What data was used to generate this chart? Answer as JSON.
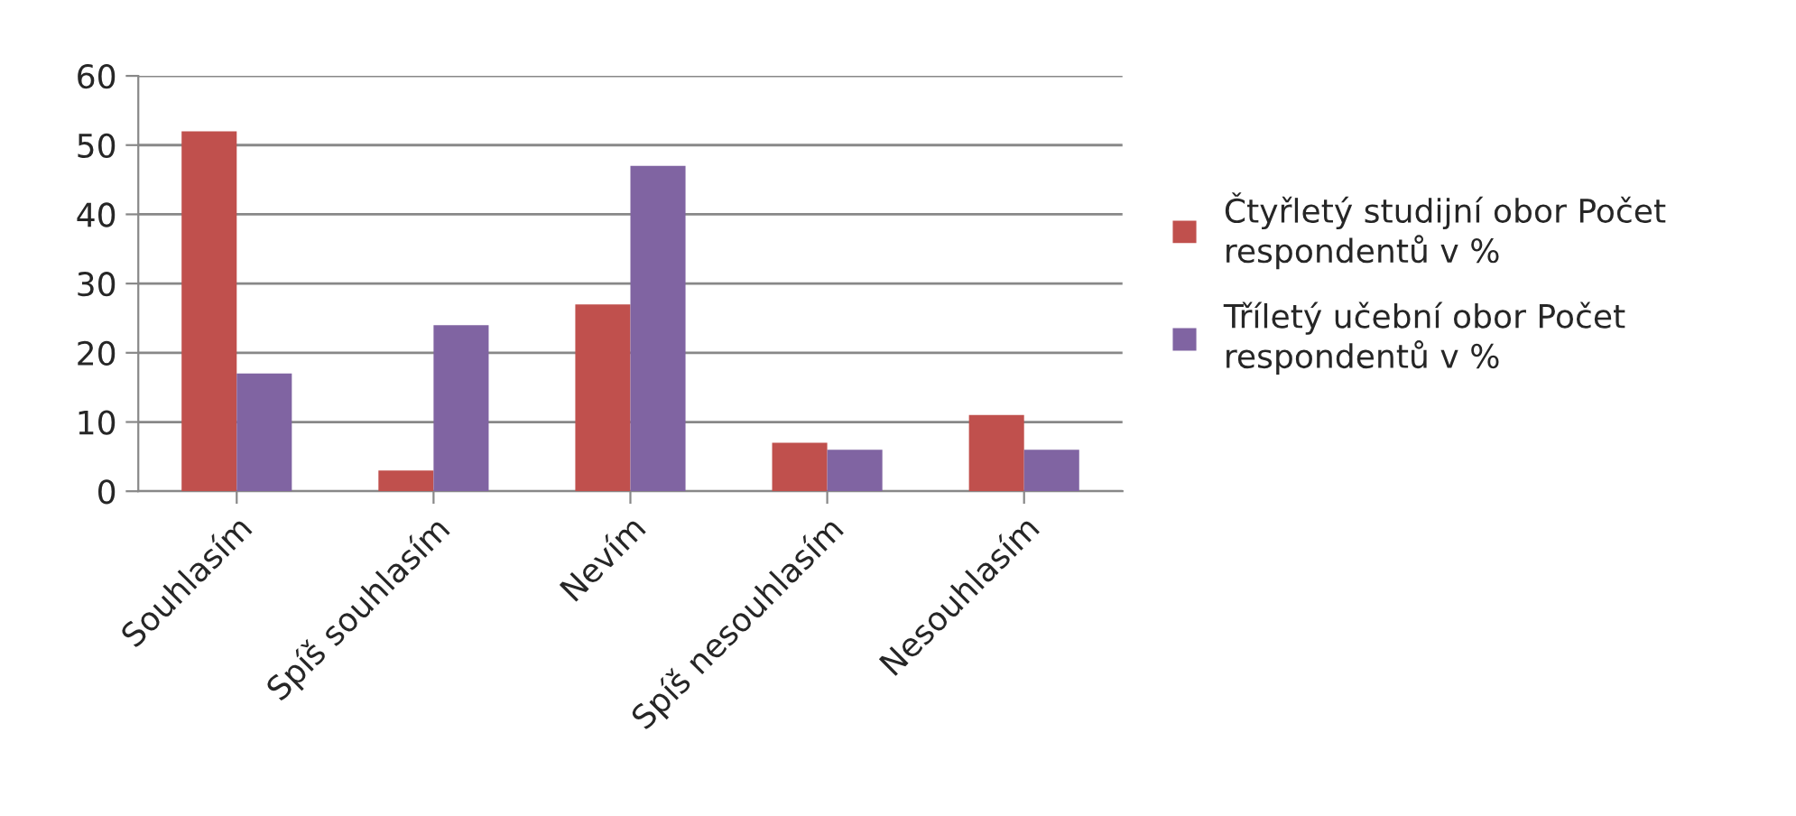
{
  "chart_data": {
    "type": "bar",
    "categories": [
      "Souhlasím",
      "Spíš souhlasím",
      "Nevím",
      "Spíš nesouhlasím",
      "Nesouhlasím"
    ],
    "series": [
      {
        "name": "Čtyřletý studijní obor Počet\nrespondentů v %",
        "color": "#c0504d",
        "values": [
          52,
          3,
          27,
          7,
          11
        ]
      },
      {
        "name": "Tříletý učební obor Počet\nrespondentů v %",
        "color": "#8064a2",
        "values": [
          17,
          24,
          47,
          6,
          6
        ]
      }
    ],
    "ylim": [
      0,
      60
    ],
    "yticks": [
      0,
      10,
      20,
      30,
      40,
      50,
      60
    ],
    "grid": "y",
    "legend": "right"
  }
}
